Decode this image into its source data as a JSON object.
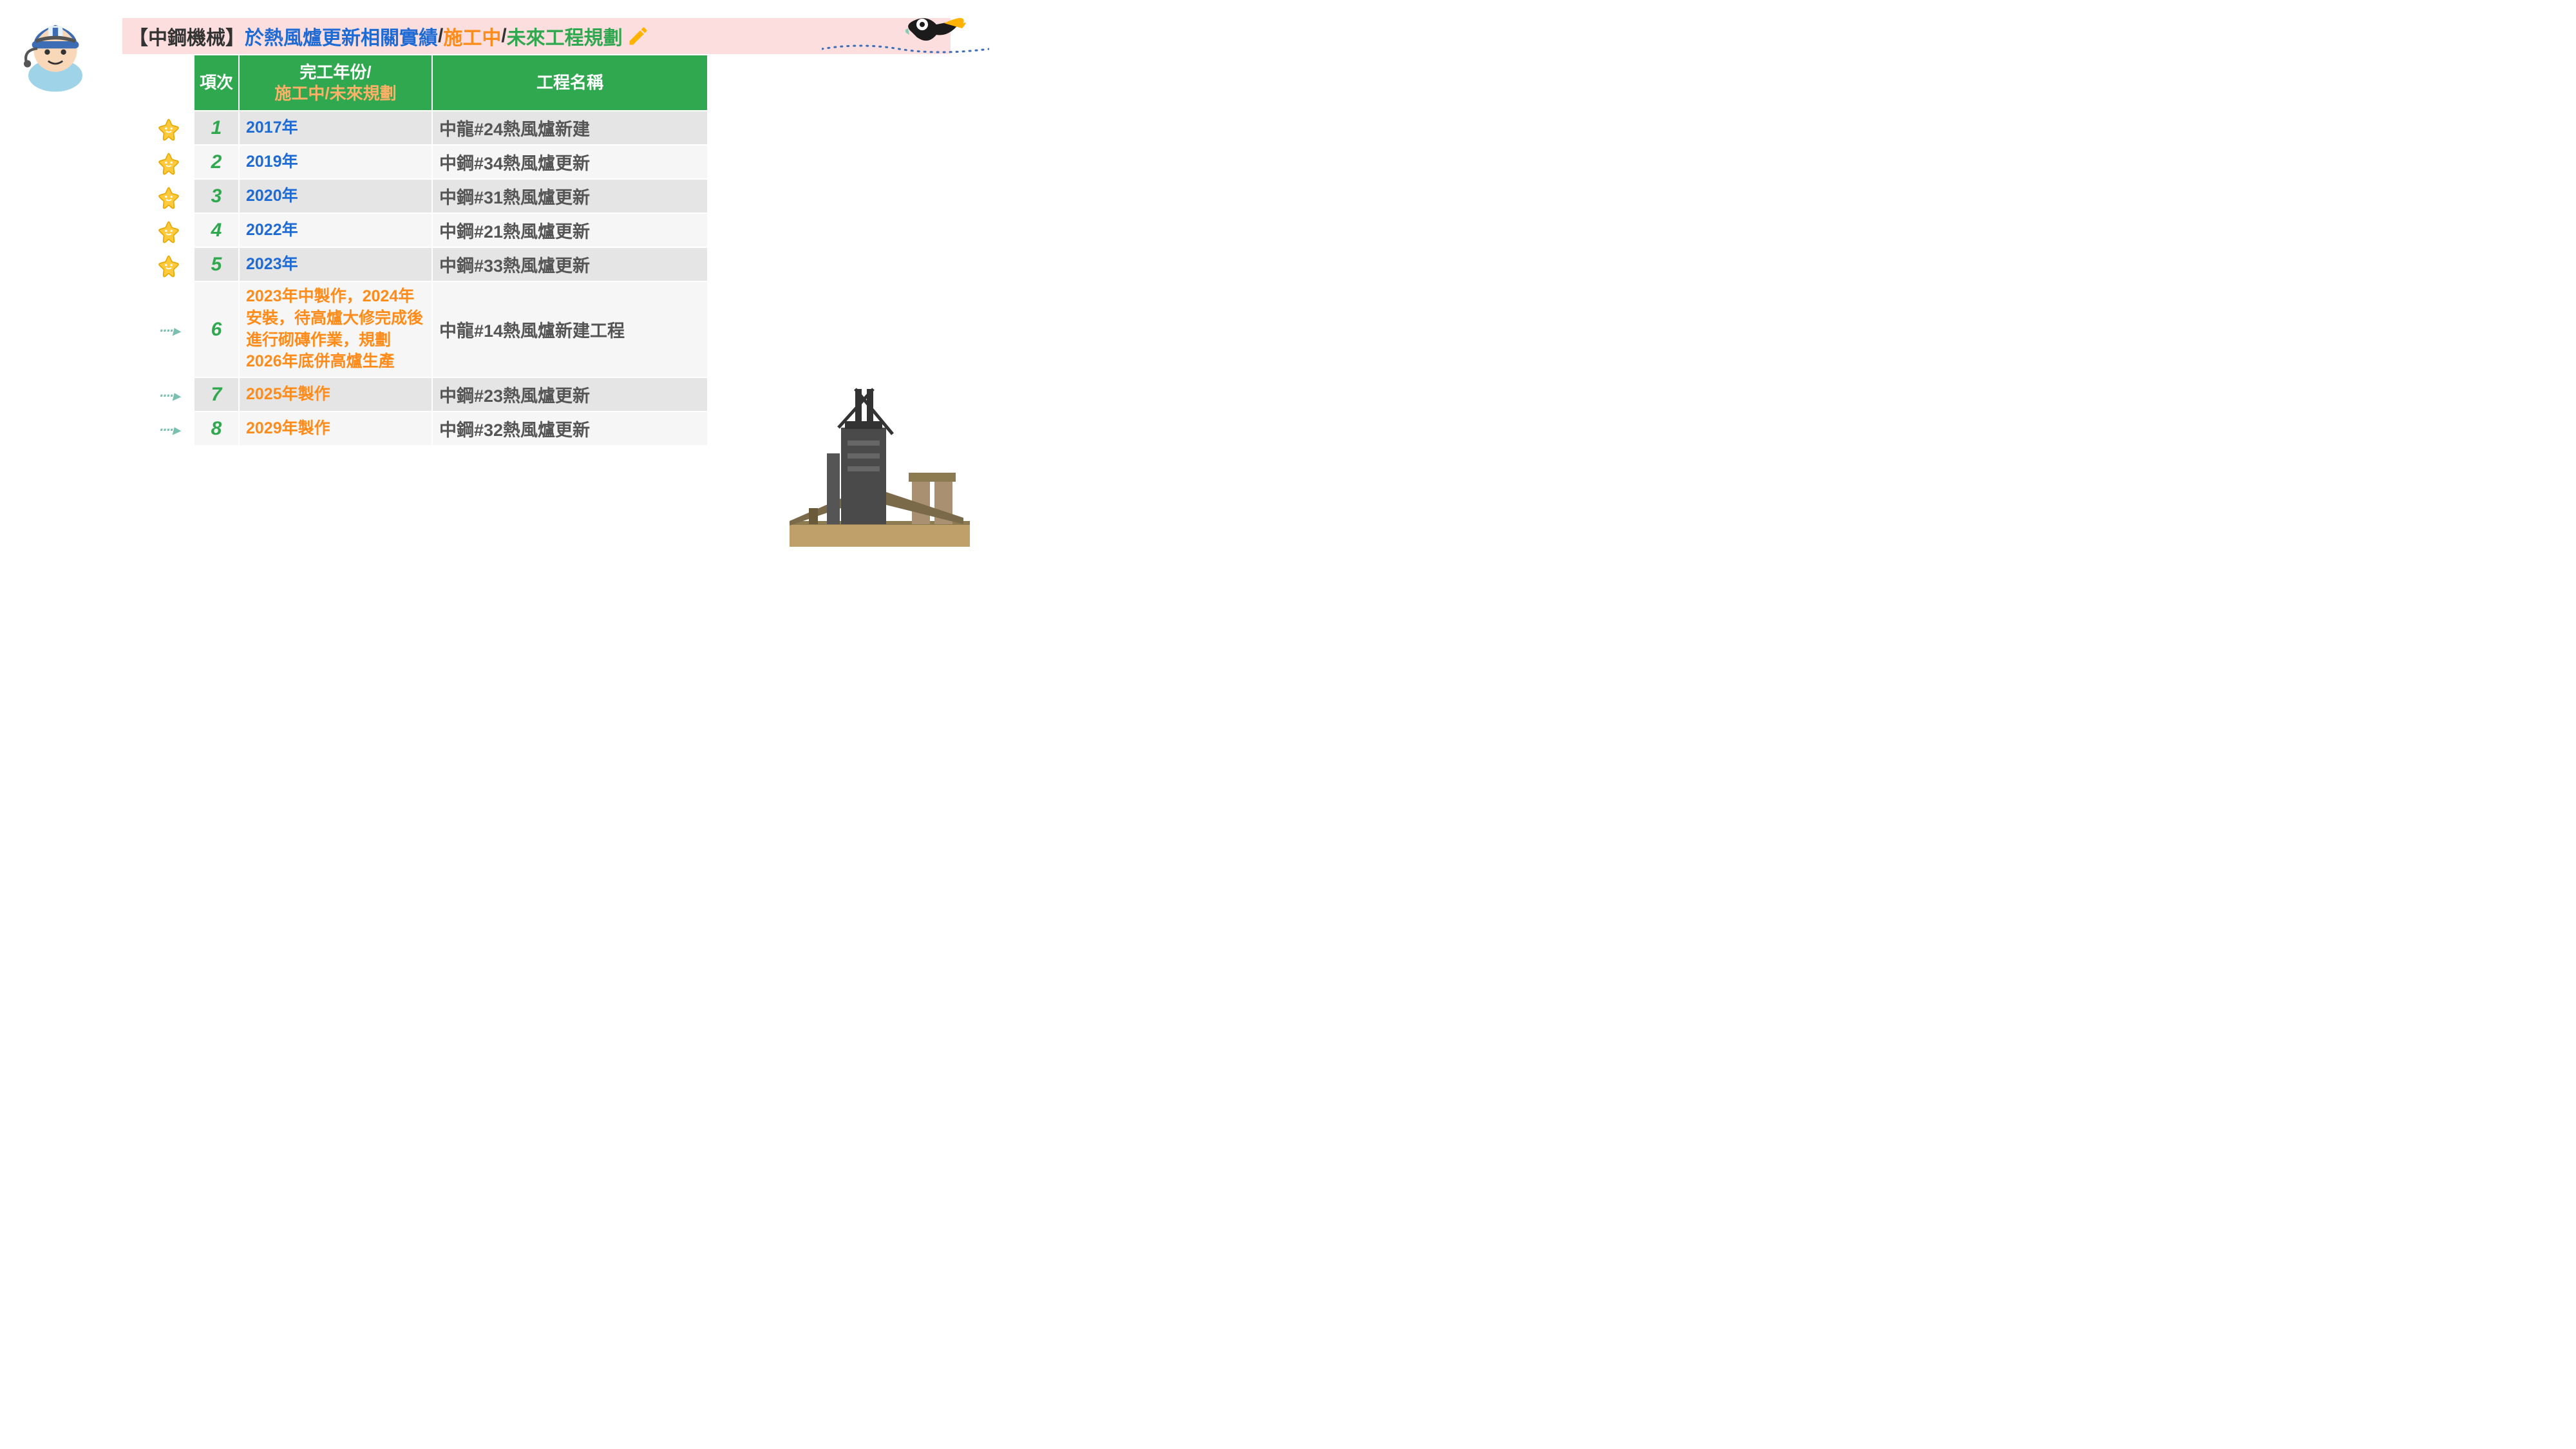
{
  "title": {
    "prefix": "【中鋼機械】",
    "main": "於熱風爐更新相關實績",
    "slash1": "/",
    "mid": "施工中",
    "slash2": "/",
    "end": "未來工程規劃"
  },
  "headers": {
    "col1": "項次",
    "col2_line1": "完工年份/",
    "col2_line2": "施工中/未來規劃",
    "col3": "工程名稱"
  },
  "rows": [
    {
      "idx": "1",
      "year": "2017年",
      "year_class": "year-completed",
      "name": "中龍#24熱風爐新建",
      "marker": "star",
      "stripe": "odd"
    },
    {
      "idx": "2",
      "year": "2019年",
      "year_class": "year-completed",
      "name": "中鋼#34熱風爐更新",
      "marker": "star",
      "stripe": "even"
    },
    {
      "idx": "3",
      "year": "2020年",
      "year_class": "year-completed",
      "name": "中鋼#31熱風爐更新",
      "marker": "star",
      "stripe": "odd"
    },
    {
      "idx": "4",
      "year": "2022年",
      "year_class": "year-completed",
      "name": "中鋼#21熱風爐更新",
      "marker": "star",
      "stripe": "even"
    },
    {
      "idx": "5",
      "year": "2023年",
      "year_class": "year-completed",
      "name": "中鋼#33熱風爐更新",
      "marker": "star",
      "stripe": "odd"
    },
    {
      "idx": "6",
      "year": "2023年中製作，2024年安裝，待高爐大修完成後進行砌磚作業，規劃2026年底併高爐生產",
      "year_class": "year-planned",
      "name": "中龍#14熱風爐新建工程",
      "marker": "arrow",
      "stripe": "even"
    },
    {
      "idx": "7",
      "year": "2025年製作",
      "year_class": "year-planned",
      "name": "中鋼#23熱風爐更新",
      "marker": "arrow",
      "stripe": "odd"
    },
    {
      "idx": "8",
      "year": "2029年製作",
      "year_class": "year-planned",
      "name": "中鋼#32熱風爐更新",
      "marker": "arrow",
      "stripe": "even"
    }
  ],
  "colors": {
    "header_bg": "#2fa84f",
    "title_bg": "#fcdede",
    "completed": "#1f6bd6",
    "planned": "#ff8c1a",
    "idx": "#2fa84f",
    "row_odd": "#e5e5e5",
    "row_even": "#f6f6f6"
  }
}
